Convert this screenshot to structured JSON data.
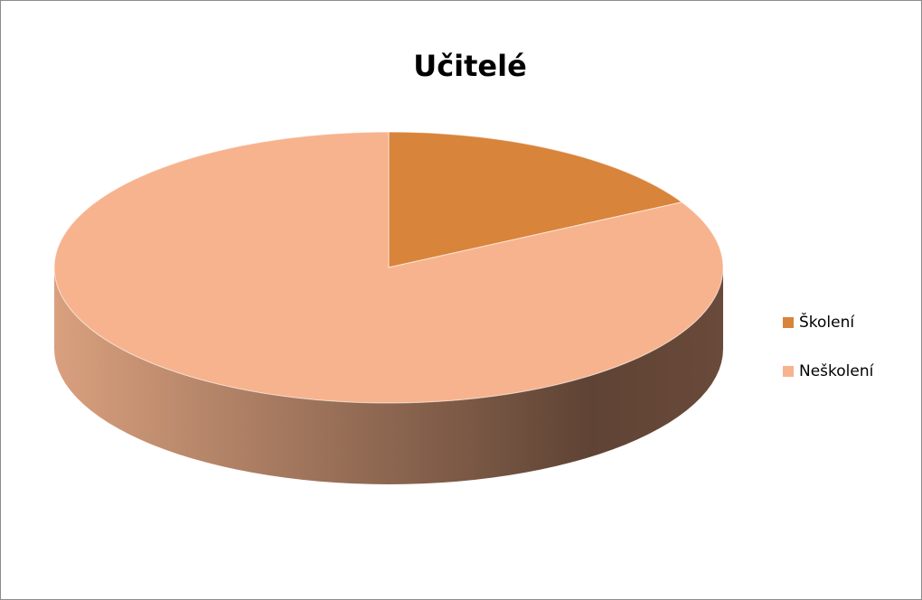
{
  "chart_data": {
    "type": "pie",
    "title": "Učitelé",
    "categories": [
      "Školení",
      "Neškolení"
    ],
    "values": [
      17,
      83
    ],
    "colors": [
      "#d9843b",
      "#f7b38e"
    ],
    "legend": "right"
  }
}
